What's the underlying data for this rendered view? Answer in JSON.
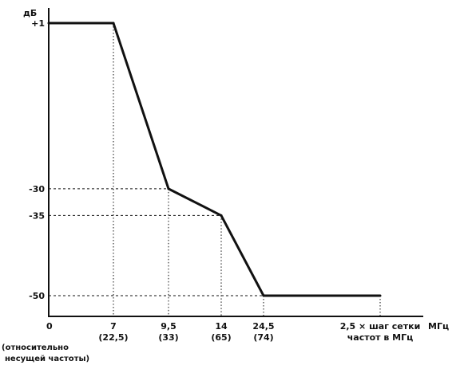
{
  "chart_data": {
    "type": "line",
    "title": "",
    "ylabel": "дБ",
    "xlabel": "МГц",
    "ylim": [
      -50,
      1
    ],
    "grid": false,
    "series": [
      {
        "x": [
          0,
          7,
          9.5,
          14,
          24.5,
          2.5
        ],
        "values": [
          1,
          1,
          -30,
          -35,
          -50,
          -50
        ]
      }
    ],
    "y_ticks": [
      "+1",
      "-30",
      "-35",
      "-50"
    ],
    "x_ticks": [
      "0",
      "7",
      "9,5",
      "14",
      "24,5",
      "2,5 × шаг сетки"
    ],
    "x_ticks_sub": [
      "(22,5)",
      "(33)",
      "(65)",
      "(74)",
      "частот в МГц"
    ],
    "x_origin_note": [
      "(относительно",
      "несущей частоты)"
    ]
  }
}
